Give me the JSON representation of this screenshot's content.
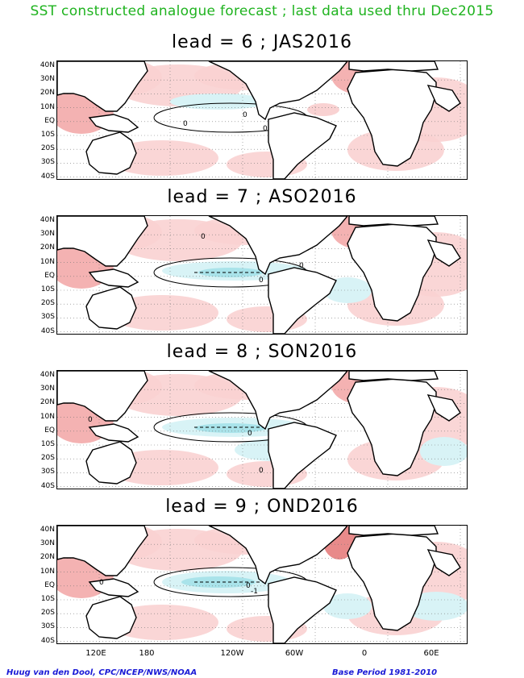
{
  "title": "SST constructed analogue forecast ; last data used thru Dec2015",
  "panels": [
    {
      "label": "lead = 6 ; JAS2016"
    },
    {
      "label": "lead = 7 ; ASO2016"
    },
    {
      "label": "lead = 8 ; SON2016"
    },
    {
      "label": "lead = 9 ; OND2016"
    }
  ],
  "lat_labels": [
    "40N",
    "30N",
    "20N",
    "10N",
    "EQ",
    "10S",
    "20S",
    "30S",
    "40S"
  ],
  "lon_labels": [
    "120E",
    "180",
    "120W",
    "60W",
    "0",
    "60E"
  ],
  "contour_labels": [
    "0",
    "-1"
  ],
  "footer_left": "Huug van den Dool, CPC/NCEP/NWS/NOAA",
  "footer_right": "Base Period 1981-2010",
  "colors": {
    "title": "#1fb31f",
    "warm_light": "#f9d2d2",
    "warm_medium": "#f3aaaa",
    "warm_strong": "#e88a8a",
    "cool_light": "#d8f3f6",
    "cool_medium": "#a9e3ea",
    "footer": "#1a1ad6"
  }
}
